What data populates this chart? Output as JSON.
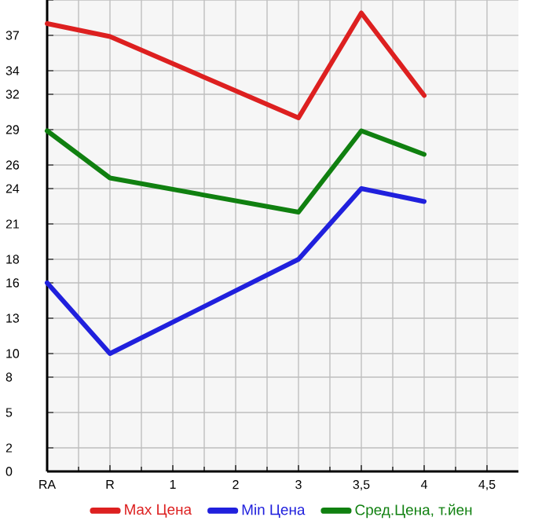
{
  "chart_data": {
    "type": "line",
    "categories": [
      "RA",
      "R",
      "1",
      "2",
      "3",
      "3,5",
      "4",
      "4,5"
    ],
    "series": [
      {
        "name": "Max Цена",
        "color": "#dd2020",
        "values": [
          38.0,
          36.9,
          null,
          null,
          30.0,
          38.9,
          31.9,
          null
        ]
      },
      {
        "name": "Min Цена",
        "color": "#2020dd",
        "values": [
          16.0,
          10.0,
          null,
          null,
          18.0,
          24.0,
          22.9,
          null
        ]
      },
      {
        "name": "Сред.Цена, т.йен",
        "color": "#108010",
        "values": [
          28.9,
          24.9,
          null,
          null,
          22.0,
          28.9,
          26.9,
          null
        ]
      }
    ],
    "ylim": [
      0,
      40
    ],
    "yticks": [
      0,
      2,
      5,
      8,
      10,
      13,
      16,
      18,
      21,
      24,
      26,
      29,
      32,
      34,
      37,
      {
        "value": 40,
        "label": null
      }
    ],
    "grid": true,
    "legend": "bottom",
    "marker": "none",
    "line_style": "solid"
  }
}
